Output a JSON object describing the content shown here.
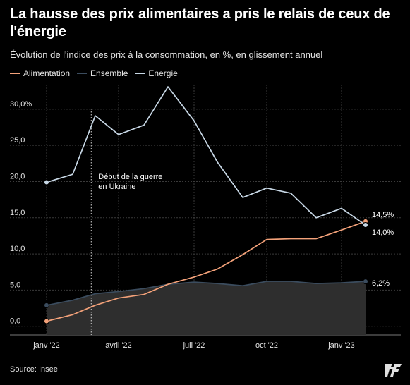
{
  "chart_data": {
    "type": "line",
    "title": "La hausse des prix alimentaires a pris le relais de ceux de l'énergie",
    "subtitle": "Évolution de l'indice des prix à la consommation, en %, en glissement annuel",
    "x": [
      "2022-01",
      "2022-02",
      "2022-03",
      "2022-04",
      "2022-05",
      "2022-06",
      "2022-07",
      "2022-08",
      "2022-09",
      "2022-10",
      "2022-11",
      "2022-12",
      "2023-01",
      "2023-02"
    ],
    "x_ticks": [
      {
        "x": "2022-01",
        "label": "janv '22"
      },
      {
        "x": "2022-04",
        "label": "avril '22"
      },
      {
        "x": "2022-07",
        "label": "juil '22"
      },
      {
        "x": "2022-10",
        "label": "oct '22"
      },
      {
        "x": "2023-01",
        "label": "janv '23"
      }
    ],
    "y_ticks": [
      {
        "value": 0,
        "label": "0,0"
      },
      {
        "value": 5,
        "label": "5,0"
      },
      {
        "value": 10,
        "label": "10,0"
      },
      {
        "value": 15,
        "label": "15,0"
      },
      {
        "value": 20,
        "label": "20,0"
      },
      {
        "value": 25,
        "label": "25,0"
      },
      {
        "value": 30,
        "label": "30,0%"
      }
    ],
    "ylim": [
      -1.2,
      33.4
    ],
    "grid": true,
    "legend_placement": "top-left",
    "series": [
      {
        "name": "Alimentation",
        "color": "#f4a27a",
        "values": [
          0.7,
          1.6,
          2.9,
          3.9,
          4.4,
          5.8,
          6.8,
          7.9,
          9.9,
          12.0,
          12.1,
          12.1,
          13.3,
          14.5
        ],
        "end_label": "14,5%"
      },
      {
        "name": "Ensemble",
        "color": "#3b4c5e",
        "area": true,
        "values": [
          2.9,
          3.6,
          4.5,
          4.8,
          5.2,
          5.8,
          6.1,
          5.9,
          5.6,
          6.2,
          6.2,
          5.9,
          6.0,
          6.2
        ],
        "end_label": "6,2%"
      },
      {
        "name": "Energie",
        "color": "#c8d8e6",
        "values": [
          19.9,
          21.0,
          29.1,
          26.5,
          27.8,
          33.1,
          28.4,
          22.7,
          17.8,
          19.1,
          18.4,
          15.0,
          16.3,
          14.0
        ],
        "end_label": "14,0%"
      }
    ],
    "annotations": [
      {
        "x": "2022-02-24",
        "text_lines": [
          "Début de la guerre",
          "en Ukraine"
        ]
      }
    ],
    "source": "Source: Insee"
  },
  "colors": {
    "background": "#000000",
    "grid": "#3a3a3a",
    "axis_text": "#e4e4e4",
    "area_fill": "#2e2e2e",
    "marker_outline": "#000000"
  },
  "icons": {
    "logo": "publisher-logo-icon"
  }
}
